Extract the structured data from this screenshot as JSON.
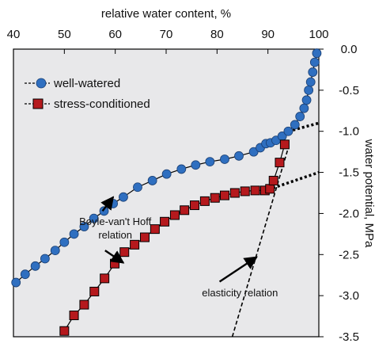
{
  "chart_data": {
    "type": "scatter",
    "xlabel": "relative water content, %",
    "ylabel": "water potential, MPa",
    "xlim": [
      40,
      100
    ],
    "ylim": [
      0,
      -3.5
    ],
    "x_axis_position": "top",
    "y_axis_position": "right",
    "x_ticks": [
      40,
      50,
      60,
      70,
      80,
      90,
      100
    ],
    "y_ticks": [
      0.0,
      -0.5,
      -1.0,
      -1.5,
      -2.0,
      -2.5,
      -3.0,
      -3.5
    ],
    "x_tick_labels": [
      "40",
      "50",
      "60",
      "70",
      "80",
      "90",
      "100"
    ],
    "y_tick_labels": [
      "0.0",
      "-0.5",
      "-1.0",
      "-1.5",
      "-2.0",
      "-2.5",
      "-3.0",
      "-3.5"
    ],
    "background": "#e8e8ea",
    "grid": false,
    "legend_position": "top-left",
    "series": [
      {
        "name": "well-watered",
        "marker": "circle",
        "color": "#2f6fc0",
        "x": [
          40.5,
          42.3,
          44.3,
          46.2,
          48.2,
          50.0,
          51.9,
          53.9,
          55.8,
          57.8,
          59.6,
          61.6,
          64.4,
          67.3,
          70.1,
          73.0,
          75.8,
          78.6,
          81.5,
          84.3,
          87.2,
          88.5,
          89.6,
          90.5,
          91.6,
          92.8,
          94.0,
          95.3,
          96.3,
          97.1,
          97.6,
          98.0,
          98.4,
          98.8,
          99.2,
          99.6
        ],
        "y": [
          -2.84,
          -2.74,
          -2.64,
          -2.55,
          -2.45,
          -2.35,
          -2.25,
          -2.16,
          -2.06,
          -1.97,
          -1.88,
          -1.8,
          -1.68,
          -1.6,
          -1.52,
          -1.46,
          -1.41,
          -1.37,
          -1.34,
          -1.3,
          -1.25,
          -1.2,
          -1.15,
          -1.14,
          -1.11,
          -1.06,
          -1.0,
          -0.92,
          -0.82,
          -0.72,
          -0.62,
          -0.5,
          -0.4,
          -0.28,
          -0.16,
          -0.05
        ]
      },
      {
        "name": "stress-conditioned",
        "marker": "square",
        "color": "#b5191d",
        "x": [
          50.0,
          51.9,
          53.9,
          55.9,
          57.9,
          59.9,
          61.8,
          63.8,
          65.8,
          67.8,
          69.7,
          71.7,
          73.6,
          75.6,
          77.6,
          79.6,
          81.5,
          83.5,
          85.5,
          87.5,
          89.4,
          90.4,
          91.1,
          92.3,
          93.3
        ],
        "y": [
          -3.43,
          -3.24,
          -3.11,
          -2.95,
          -2.79,
          -2.61,
          -2.47,
          -2.38,
          -2.29,
          -2.19,
          -2.1,
          -2.02,
          -1.96,
          -1.9,
          -1.85,
          -1.81,
          -1.78,
          -1.75,
          -1.73,
          -1.72,
          -1.72,
          -1.7,
          -1.6,
          -1.38,
          -1.16
        ]
      }
    ],
    "extrapolation_lines": [
      {
        "x": [
          94.0,
          100.0
        ],
        "y": [
          -1.0,
          -0.9
        ]
      },
      {
        "x": [
          91.0,
          100.0
        ],
        "y": [
          -1.69,
          -1.5
        ]
      }
    ],
    "elasticity_line": {
      "x": [
        83.0,
        94.0
      ],
      "y": [
        -3.5,
        -1.2
      ]
    },
    "annotations": [
      {
        "text_lines": [
          "Boyle-van't Hoff",
          "relation"
        ],
        "text_x": 60.0,
        "text_y": -2.14,
        "arrows": [
          {
            "from": [
              57.5,
              -1.97
            ],
            "to": [
              59.6,
              -1.8
            ]
          },
          {
            "from": [
              58.0,
              -2.45
            ],
            "to": [
              61.6,
              -2.6
            ]
          }
        ]
      },
      {
        "text_lines": [
          "elasticity relation"
        ],
        "text_x": 84.5,
        "text_y": -3.01,
        "arrows": [
          {
            "from": [
              80.5,
              -2.83
            ],
            "to": [
              87.8,
              -2.53
            ]
          }
        ]
      }
    ]
  }
}
